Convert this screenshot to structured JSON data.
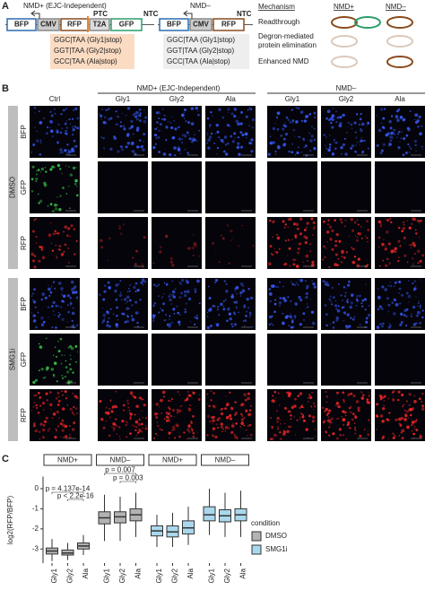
{
  "panel_a": {
    "label": "A",
    "nmd_plus_title": "NMD+ (EJC-Independent)",
    "nmd_minus_title": "NMD–",
    "constructs": {
      "bfp": "BFP",
      "cmv": "CMV",
      "rfp": "RFP",
      "t2a": "T2A",
      "gfp": "GFP",
      "ntc": "NTC",
      "ptc": "PTC"
    },
    "codons_plus": [
      "GGC|TAA (Gly1|stop)",
      "GGT|TAA (Gly2|stop)",
      "GCC|TAA (Ala|stop)"
    ],
    "codons_minus": [
      "GGC|TAA (Gly1|stop)",
      "GGT|TAA (Gly2|stop)",
      "GCC|TAA (Ala|stop)"
    ],
    "mechanism": {
      "header": "Mechanism",
      "cols": [
        "NMD+",
        "NMD–"
      ],
      "rows": [
        [
          "Readthrough"
        ],
        [
          "Degron-mediated",
          "protein elimination"
        ],
        [
          "Enhanced NMD"
        ]
      ]
    }
  },
  "panel_b": {
    "label": "B",
    "ctrl": "Ctrl",
    "groups": [
      "NMD+ (EJC-Independent)",
      "NMD–"
    ],
    "columns": [
      "Gly1",
      "Gly2",
      "Ala",
      "Gly1",
      "Gly2",
      "Ala"
    ],
    "conditions": [
      "DMSO",
      "SMG1i"
    ],
    "channels": [
      "BFP",
      "GFP",
      "RFP"
    ]
  },
  "chart_data": {
    "type": "box",
    "label": "C",
    "ylabel": "log2(RFP/BFP)",
    "categories": [
      "Gly1",
      "Gly2",
      "Ala",
      "Gly1",
      "Gly2",
      "Ala",
      "Gly1",
      "Gly2",
      "Ala",
      "Gly1",
      "Gly2",
      "Ala"
    ],
    "strips": [
      "NMD+",
      "NMD–",
      "NMD+",
      "NMD–"
    ],
    "ylim": [
      -3.7,
      0.6
    ],
    "yticks": [
      -3,
      -2,
      -1,
      0
    ],
    "legend_title": "condition",
    "series": [
      {
        "name": "DMSO",
        "color": "#b3b3b3",
        "min": [
          -3.6,
          -3.55,
          -3.3,
          -2.6,
          -2.6,
          -2.4,
          null,
          null,
          null,
          null,
          null,
          null
        ],
        "q1": [
          -3.25,
          -3.3,
          -3.0,
          -1.75,
          -1.7,
          -1.6,
          null,
          null,
          null,
          null,
          null,
          null
        ],
        "median": [
          -3.1,
          -3.2,
          -2.85,
          -1.45,
          -1.4,
          -1.3,
          null,
          null,
          null,
          null,
          null,
          null
        ],
        "q3": [
          -2.95,
          -3.05,
          -2.7,
          -1.15,
          -1.15,
          -1.0,
          null,
          null,
          null,
          null,
          null,
          null
        ],
        "max": [
          -2.5,
          -2.7,
          -2.3,
          -0.3,
          -0.4,
          -0.2,
          null,
          null,
          null,
          null,
          null,
          null
        ]
      },
      {
        "name": "SMG1i",
        "color": "#a9d8ec",
        "min": [
          null,
          null,
          null,
          null,
          null,
          null,
          -2.9,
          -2.9,
          -2.8,
          -2.3,
          -2.4,
          -2.4
        ],
        "q1": [
          null,
          null,
          null,
          null,
          null,
          null,
          -2.35,
          -2.4,
          -2.25,
          -1.6,
          -1.65,
          -1.6
        ],
        "median": [
          null,
          null,
          null,
          null,
          null,
          null,
          -2.1,
          -2.15,
          -1.95,
          -1.3,
          -1.35,
          -1.3
        ],
        "q3": [
          null,
          null,
          null,
          null,
          null,
          null,
          -1.85,
          -1.85,
          -1.6,
          -0.9,
          -1.05,
          -1.0
        ],
        "max": [
          null,
          null,
          null,
          null,
          null,
          null,
          -1.3,
          -1.2,
          -0.9,
          0,
          -0.2,
          -0.1
        ]
      }
    ],
    "annotations": [
      "p = 4.137e-14",
      "p < 2.2e-16",
      "p = 0.007",
      "p = 0.003"
    ]
  }
}
